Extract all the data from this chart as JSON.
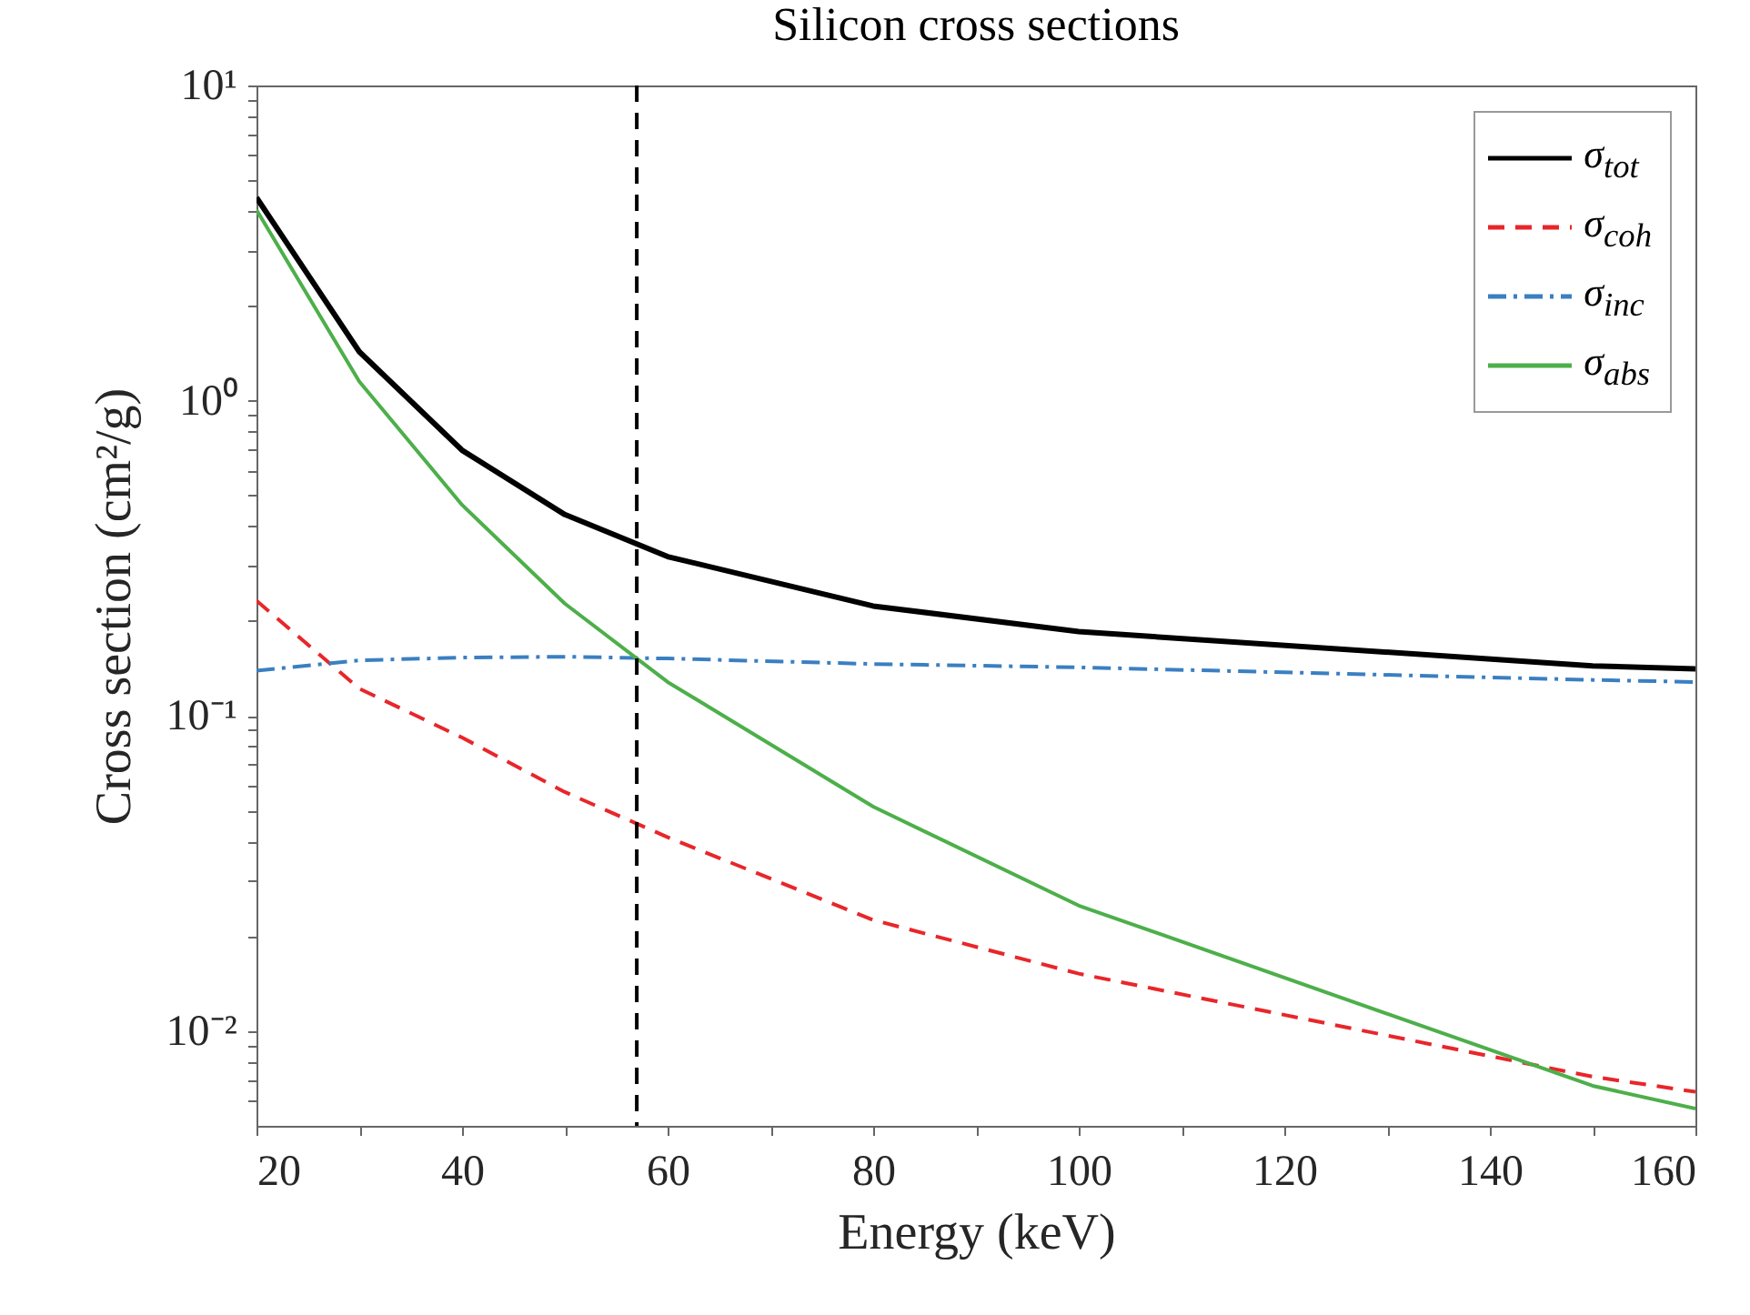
{
  "chart_data": {
    "type": "line",
    "title": "Silicon cross sections",
    "xlabel": "Energy (keV)",
    "ylabel": "Cross section (cm²/g)",
    "x": [
      20,
      30,
      40,
      50,
      60,
      80,
      100,
      150,
      160
    ],
    "series": [
      {
        "name": "σ$_{tot}$",
        "color": "#000000",
        "line_style": "solid",
        "values": [
          4.41,
          1.43,
          0.696,
          0.435,
          0.32,
          0.223,
          0.185,
          0.144,
          0.141
        ]
      },
      {
        "name": "σ$_{coh}$",
        "color": "#e8262a",
        "line_style": "dashed",
        "values": [
          0.232,
          0.122,
          0.0853,
          0.0573,
          0.0412,
          0.0225,
          0.0152,
          0.00716,
          0.00641
        ]
      },
      {
        "name": "σ$_{inc}$",
        "color": "#3a7fc1",
        "line_style": "dashdot",
        "values": [
          0.139,
          0.15,
          0.153,
          0.154,
          0.152,
          0.146,
          0.1425,
          0.13,
          0.128
        ]
      },
      {
        "name": "σ$_{abs}$",
        "color": "#4daf4a",
        "line_style": "solid",
        "values": [
          4.03,
          1.15,
          0.467,
          0.227,
          0.128,
          0.0515,
          0.025,
          0.0067,
          0.00567
        ]
      }
    ],
    "log": "y",
    "grid": false,
    "legend": "top right",
    "marker": "none",
    "xlim": [
      20,
      160
    ],
    "xticks": [
      20,
      {
        "value": 30,
        "label": null
      },
      40,
      {
        "value": 50,
        "label": null
      },
      60,
      {
        "value": 70,
        "label": null
      },
      80,
      {
        "value": 90,
        "label": null
      },
      100,
      {
        "value": 110,
        "label": null
      },
      120,
      {
        "value": 130,
        "label": null
      },
      140,
      {
        "value": 150,
        "label": null
      },
      160
    ],
    "ylim": [
      0.005,
      10
    ],
    "yticks": [
      {
        "value": 0.006,
        "label": null
      },
      {
        "value": 0.007,
        "label": null
      },
      {
        "value": 0.008,
        "label": null
      },
      {
        "value": 0.009,
        "label": null
      },
      {
        "value": 0.01,
        "label": "10⁻²"
      },
      {
        "value": 0.02,
        "label": null
      },
      {
        "value": 0.03,
        "label": null
      },
      {
        "value": 0.04,
        "label": null
      },
      {
        "value": 0.05,
        "label": null
      },
      {
        "value": 0.06,
        "label": null
      },
      {
        "value": 0.07,
        "label": null
      },
      {
        "value": 0.08,
        "label": null
      },
      {
        "value": 0.09,
        "label": null
      },
      {
        "value": 0.1,
        "label": "10⁻¹"
      },
      {
        "value": 0.2,
        "label": null
      },
      {
        "value": 0.3,
        "label": null
      },
      {
        "value": 0.4,
        "label": null
      },
      {
        "value": 0.5,
        "label": null
      },
      {
        "value": 0.6,
        "label": null
      },
      {
        "value": 0.7,
        "label": null
      },
      {
        "value": 0.8,
        "label": null
      },
      {
        "value": 0.9,
        "label": null
      },
      {
        "value": 1,
        "label": "10⁰"
      },
      {
        "value": 2,
        "label": null
      },
      {
        "value": 3,
        "label": null
      },
      {
        "value": 4,
        "label": null
      },
      {
        "value": 5,
        "label": null
      },
      {
        "value": 6,
        "label": null
      },
      {
        "value": 7,
        "label": null
      },
      {
        "value": 8,
        "label": null
      },
      {
        "value": 9,
        "label": null
      },
      {
        "value": 10,
        "label": "10¹"
      }
    ],
    "ref_lines": [
      {
        "axis": "x",
        "value": 57,
        "color": "#000000",
        "line_style": "dashed"
      }
    ]
  }
}
